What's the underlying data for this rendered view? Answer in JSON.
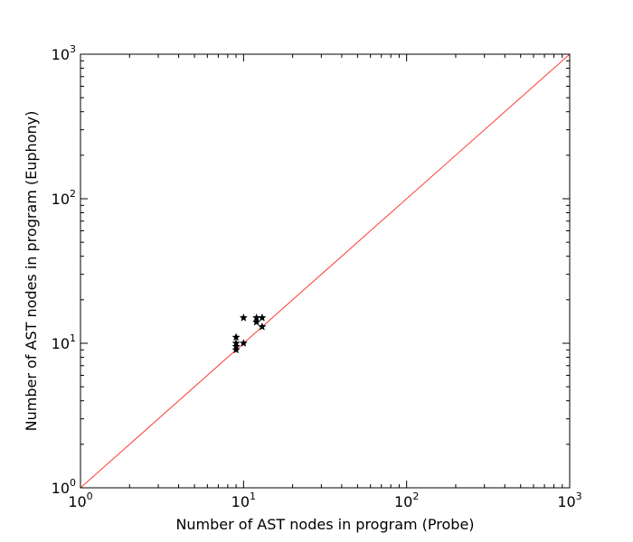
{
  "chart_data": {
    "type": "scatter",
    "title": "",
    "xlabel": "Number of AST nodes in program (Probe)",
    "ylabel": "Number of AST nodes in program (Euphony)",
    "xscale": "log",
    "yscale": "log",
    "xlim": [
      1,
      1000
    ],
    "ylim": [
      1,
      1000
    ],
    "xticks": [
      {
        "value": 1,
        "base": "10",
        "exp": "0"
      },
      {
        "value": 10,
        "base": "10",
        "exp": "1"
      },
      {
        "value": 100,
        "base": "10",
        "exp": "2"
      },
      {
        "value": 1000,
        "base": "10",
        "exp": "3"
      }
    ],
    "yticks": [
      {
        "value": 1,
        "base": "10",
        "exp": "0"
      },
      {
        "value": 10,
        "base": "10",
        "exp": "1"
      },
      {
        "value": 100,
        "base": "10",
        "exp": "2"
      },
      {
        "value": 1000,
        "base": "10",
        "exp": "3"
      }
    ],
    "grid": false,
    "reference_line": {
      "from": [
        1,
        1
      ],
      "to": [
        1000,
        1000
      ],
      "color": "#ff3b30"
    },
    "marker": "star",
    "marker_color": "#000000",
    "points": [
      {
        "x": 9,
        "y": 9
      },
      {
        "x": 9,
        "y": 9.5
      },
      {
        "x": 9,
        "y": 10
      },
      {
        "x": 9,
        "y": 11
      },
      {
        "x": 10,
        "y": 10
      },
      {
        "x": 10,
        "y": 15
      },
      {
        "x": 12,
        "y": 14
      },
      {
        "x": 12,
        "y": 15
      },
      {
        "x": 13,
        "y": 13
      },
      {
        "x": 13,
        "y": 15
      }
    ]
  }
}
